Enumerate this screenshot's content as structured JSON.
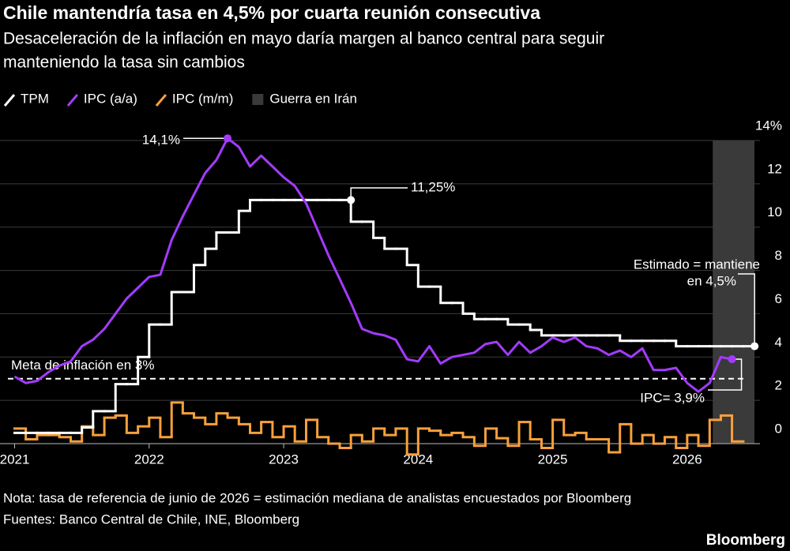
{
  "chart_data": {
    "type": "line",
    "title": "Chile mantendría tasa en 4,5% por cuarta reunión consecutiva",
    "subtitle": [
      "Desaceleración de la inflación en mayo daría margen al banco central para seguir",
      "manteniendo la tasa sin cambios"
    ],
    "x": [
      2021,
      2021.083,
      2021.167,
      2021.25,
      2021.333,
      2021.417,
      2021.5,
      2021.583,
      2021.667,
      2021.75,
      2021.833,
      2021.917,
      2022,
      2022.083,
      2022.167,
      2022.25,
      2022.333,
      2022.417,
      2022.5,
      2022.583,
      2022.667,
      2022.75,
      2022.833,
      2022.917,
      2023,
      2023.083,
      2023.167,
      2023.25,
      2023.333,
      2023.417,
      2023.5,
      2023.583,
      2023.667,
      2023.75,
      2023.833,
      2023.917,
      2024,
      2024.083,
      2024.167,
      2024.25,
      2024.333,
      2024.417,
      2024.5,
      2024.583,
      2024.667,
      2024.75,
      2024.833,
      2024.917,
      2025,
      2025.083,
      2025.167,
      2025.25,
      2025.333,
      2025.417,
      2025.5,
      2025.583,
      2025.667,
      2025.75,
      2025.833,
      2025.917,
      2026,
      2026.083,
      2026.167,
      2026.25,
      2026.333,
      2026.417
    ],
    "series": [
      {
        "name": "TPM",
        "color": "#ffffff",
        "style": "step",
        "values": [
          0.5,
          0.5,
          0.5,
          0.5,
          0.5,
          0.5,
          0.75,
          1.5,
          1.5,
          2.75,
          2.75,
          4.0,
          5.5,
          5.5,
          7.0,
          7.0,
          8.25,
          9.0,
          9.75,
          9.75,
          10.75,
          11.25,
          11.25,
          11.25,
          11.25,
          11.25,
          11.25,
          11.25,
          11.25,
          11.25,
          10.25,
          10.25,
          9.5,
          9.0,
          9.0,
          8.25,
          7.25,
          7.25,
          6.5,
          6.5,
          6.0,
          5.75,
          5.75,
          5.75,
          5.5,
          5.5,
          5.25,
          5.0,
          5.0,
          5.0,
          5.0,
          5.0,
          5.0,
          5.0,
          4.75,
          4.75,
          4.75,
          4.75,
          4.75,
          4.5,
          4.5,
          4.5,
          4.5,
          4.5,
          4.5,
          4.5
        ]
      },
      {
        "name": "IPC (a/a)",
        "color": "#a33bff",
        "style": "line",
        "values": [
          3.1,
          2.8,
          2.9,
          3.3,
          3.6,
          3.8,
          4.5,
          4.8,
          5.3,
          6.0,
          6.7,
          7.2,
          7.7,
          7.8,
          9.4,
          10.5,
          11.5,
          12.5,
          13.1,
          14.1,
          13.7,
          12.8,
          13.3,
          12.8,
          12.3,
          11.9,
          11.1,
          9.9,
          8.7,
          7.6,
          6.5,
          5.3,
          5.1,
          5.0,
          4.8,
          3.9,
          3.8,
          4.5,
          3.7,
          4.0,
          4.1,
          4.2,
          4.6,
          4.7,
          4.1,
          4.7,
          4.2,
          4.5,
          4.9,
          4.7,
          4.9,
          4.5,
          4.4,
          4.1,
          4.3,
          4.0,
          4.4,
          3.4,
          3.4,
          3.5,
          2.8,
          2.4,
          2.8,
          4.0,
          3.9,
          null
        ]
      },
      {
        "name": "IPC (m/m)",
        "color": "#f7a03c",
        "style": "step",
        "values": [
          0.7,
          0.2,
          0.4,
          0.4,
          0.3,
          0.1,
          0.8,
          0.4,
          1.2,
          1.3,
          0.5,
          0.8,
          1.2,
          0.3,
          1.9,
          1.4,
          1.2,
          0.9,
          1.4,
          1.2,
          0.9,
          0.5,
          1.0,
          0.3,
          0.8,
          0.1,
          1.1,
          0.3,
          0.0,
          -0.2,
          0.4,
          0.1,
          0.7,
          0.4,
          0.7,
          -0.5,
          0.7,
          0.6,
          0.4,
          0.5,
          0.3,
          -0.1,
          0.7,
          0.25,
          -0.1,
          1.0,
          0.2,
          -0.2,
          1.1,
          0.4,
          0.5,
          0.2,
          0.2,
          -0.4,
          0.9,
          0.0,
          0.4,
          0.0,
          0.3,
          -0.2,
          0.4,
          -0.1,
          1.1,
          1.3,
          0.1,
          null
        ]
      }
    ],
    "shade": {
      "name": "Guerra en Irán",
      "color": "#3a3a3a",
      "x": [
        2026.19,
        2026.5
      ]
    },
    "target": {
      "value": 3,
      "label": "Meta de inflación en 3%"
    },
    "annotations": [
      "14,1%",
      "11,25%",
      "Estimado = mantiene",
      "en 4,5%",
      "IPC= 3,9%"
    ],
    "xlim": [
      2020.95,
      2026.5
    ],
    "xticks": [
      2021,
      2022,
      2023,
      2024,
      2025,
      2026
    ],
    "ylim": [
      -0.6,
      14.6
    ],
    "yticks": [
      0,
      2,
      4,
      6,
      8,
      10,
      12,
      {
        "value": 14,
        "label": "14%"
      }
    ],
    "grid": true,
    "notes": [
      "Nota: tasa de referencia de junio de 2026 = estimación mediana de analistas encuestados por Bloomberg",
      "Fuentes: Banco Central de Chile, INE, Bloomberg"
    ],
    "source": "Bloomberg"
  }
}
